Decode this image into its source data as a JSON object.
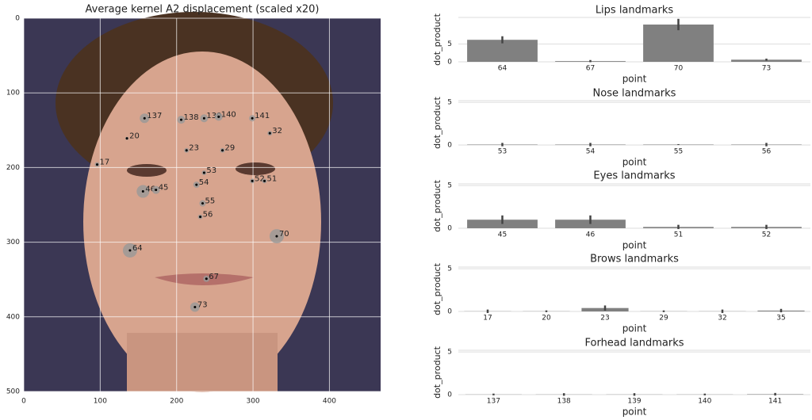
{
  "chart_data": [
    {
      "type": "scatter",
      "title": "Average kernel A2 displacement (scaled x20)",
      "xlim": [
        0,
        467
      ],
      "ylim": [
        500,
        0
      ],
      "xticks": [
        0,
        100,
        200,
        300,
        400
      ],
      "yticks": [
        0,
        100,
        200,
        300,
        400,
        500
      ],
      "grid": true,
      "labels": [
        "137",
        "138",
        "139",
        "140",
        "141",
        "32",
        "20",
        "23",
        "29",
        "17",
        "53",
        "52",
        "51",
        "54",
        "46",
        "45",
        "55",
        "56",
        "70",
        "64",
        "67",
        "73"
      ],
      "x": [
        158,
        206,
        236,
        255,
        299,
        322,
        135,
        213,
        260,
        96,
        236,
        299,
        315,
        226,
        156,
        173,
        234,
        231,
        331,
        139,
        239,
        224
      ],
      "y": [
        134,
        136,
        134,
        132,
        134,
        154,
        161,
        177,
        177,
        196,
        207,
        218,
        218,
        223,
        232,
        230,
        248,
        266,
        292,
        311,
        349,
        387
      ],
      "sizes": [
        6,
        5,
        5,
        5,
        4,
        3,
        2,
        3,
        3,
        3,
        3,
        3,
        3,
        4,
        8,
        5,
        4,
        3,
        9,
        9,
        4,
        6
      ],
      "color": "#999999"
    },
    {
      "type": "bar",
      "title": "Lips landmarks",
      "xlabel": "point",
      "ylabel": "dot_product",
      "categories": [
        "64",
        "67",
        "70",
        "73"
      ],
      "values": [
        6.2,
        0.2,
        10.5,
        0.6
      ],
      "errors": [
        1.0,
        0.3,
        1.6,
        0.3
      ],
      "ylim": [
        0,
        12.5
      ],
      "yticks": [
        0,
        5
      ],
      "color": "#808080"
    },
    {
      "type": "bar",
      "title": "Nose landmarks",
      "xlabel": "point",
      "ylabel": "dot_product",
      "categories": [
        "53",
        "54",
        "55",
        "56"
      ],
      "values": [
        0.05,
        0.05,
        0.05,
        0.05
      ],
      "errors": [
        0.2,
        0.2,
        0.05,
        0.2
      ],
      "ylim": [
        0,
        5.2
      ],
      "yticks": [
        0,
        5
      ],
      "color": "#808080"
    },
    {
      "type": "bar",
      "title": "Eyes landmarks",
      "xlabel": "point",
      "ylabel": "dot_product",
      "categories": [
        "45",
        "46",
        "51",
        "52"
      ],
      "values": [
        1.0,
        1.0,
        0.15,
        0.15
      ],
      "errors": [
        0.5,
        0.5,
        0.25,
        0.25
      ],
      "ylim": [
        0,
        5.2
      ],
      "yticks": [
        0,
        5
      ],
      "color": "#808080"
    },
    {
      "type": "bar",
      "title": "Brows landmarks",
      "xlabel": "point",
      "ylabel": "dot_product",
      "categories": [
        "17",
        "20",
        "23",
        "29",
        "32",
        "35"
      ],
      "values": [
        0.02,
        0.02,
        0.4,
        0.02,
        0.02,
        0.1
      ],
      "errors": [
        0.2,
        0.1,
        0.3,
        0.1,
        0.2,
        0.2
      ],
      "ylim": [
        0,
        5.2
      ],
      "yticks": [
        0,
        5
      ],
      "color": "#808080"
    },
    {
      "type": "bar",
      "title": "Forhead landmarks",
      "xlabel": "point",
      "ylabel": "dot_product",
      "categories": [
        "137",
        "138",
        "139",
        "140",
        "141"
      ],
      "values": [
        0.02,
        0.02,
        0.02,
        0.02,
        0.05
      ],
      "errors": [
        0.1,
        0.15,
        0.15,
        0.1,
        0.15
      ],
      "ylim": [
        0,
        5.2
      ],
      "yticks": [
        0,
        5
      ],
      "color": "#808080"
    }
  ]
}
